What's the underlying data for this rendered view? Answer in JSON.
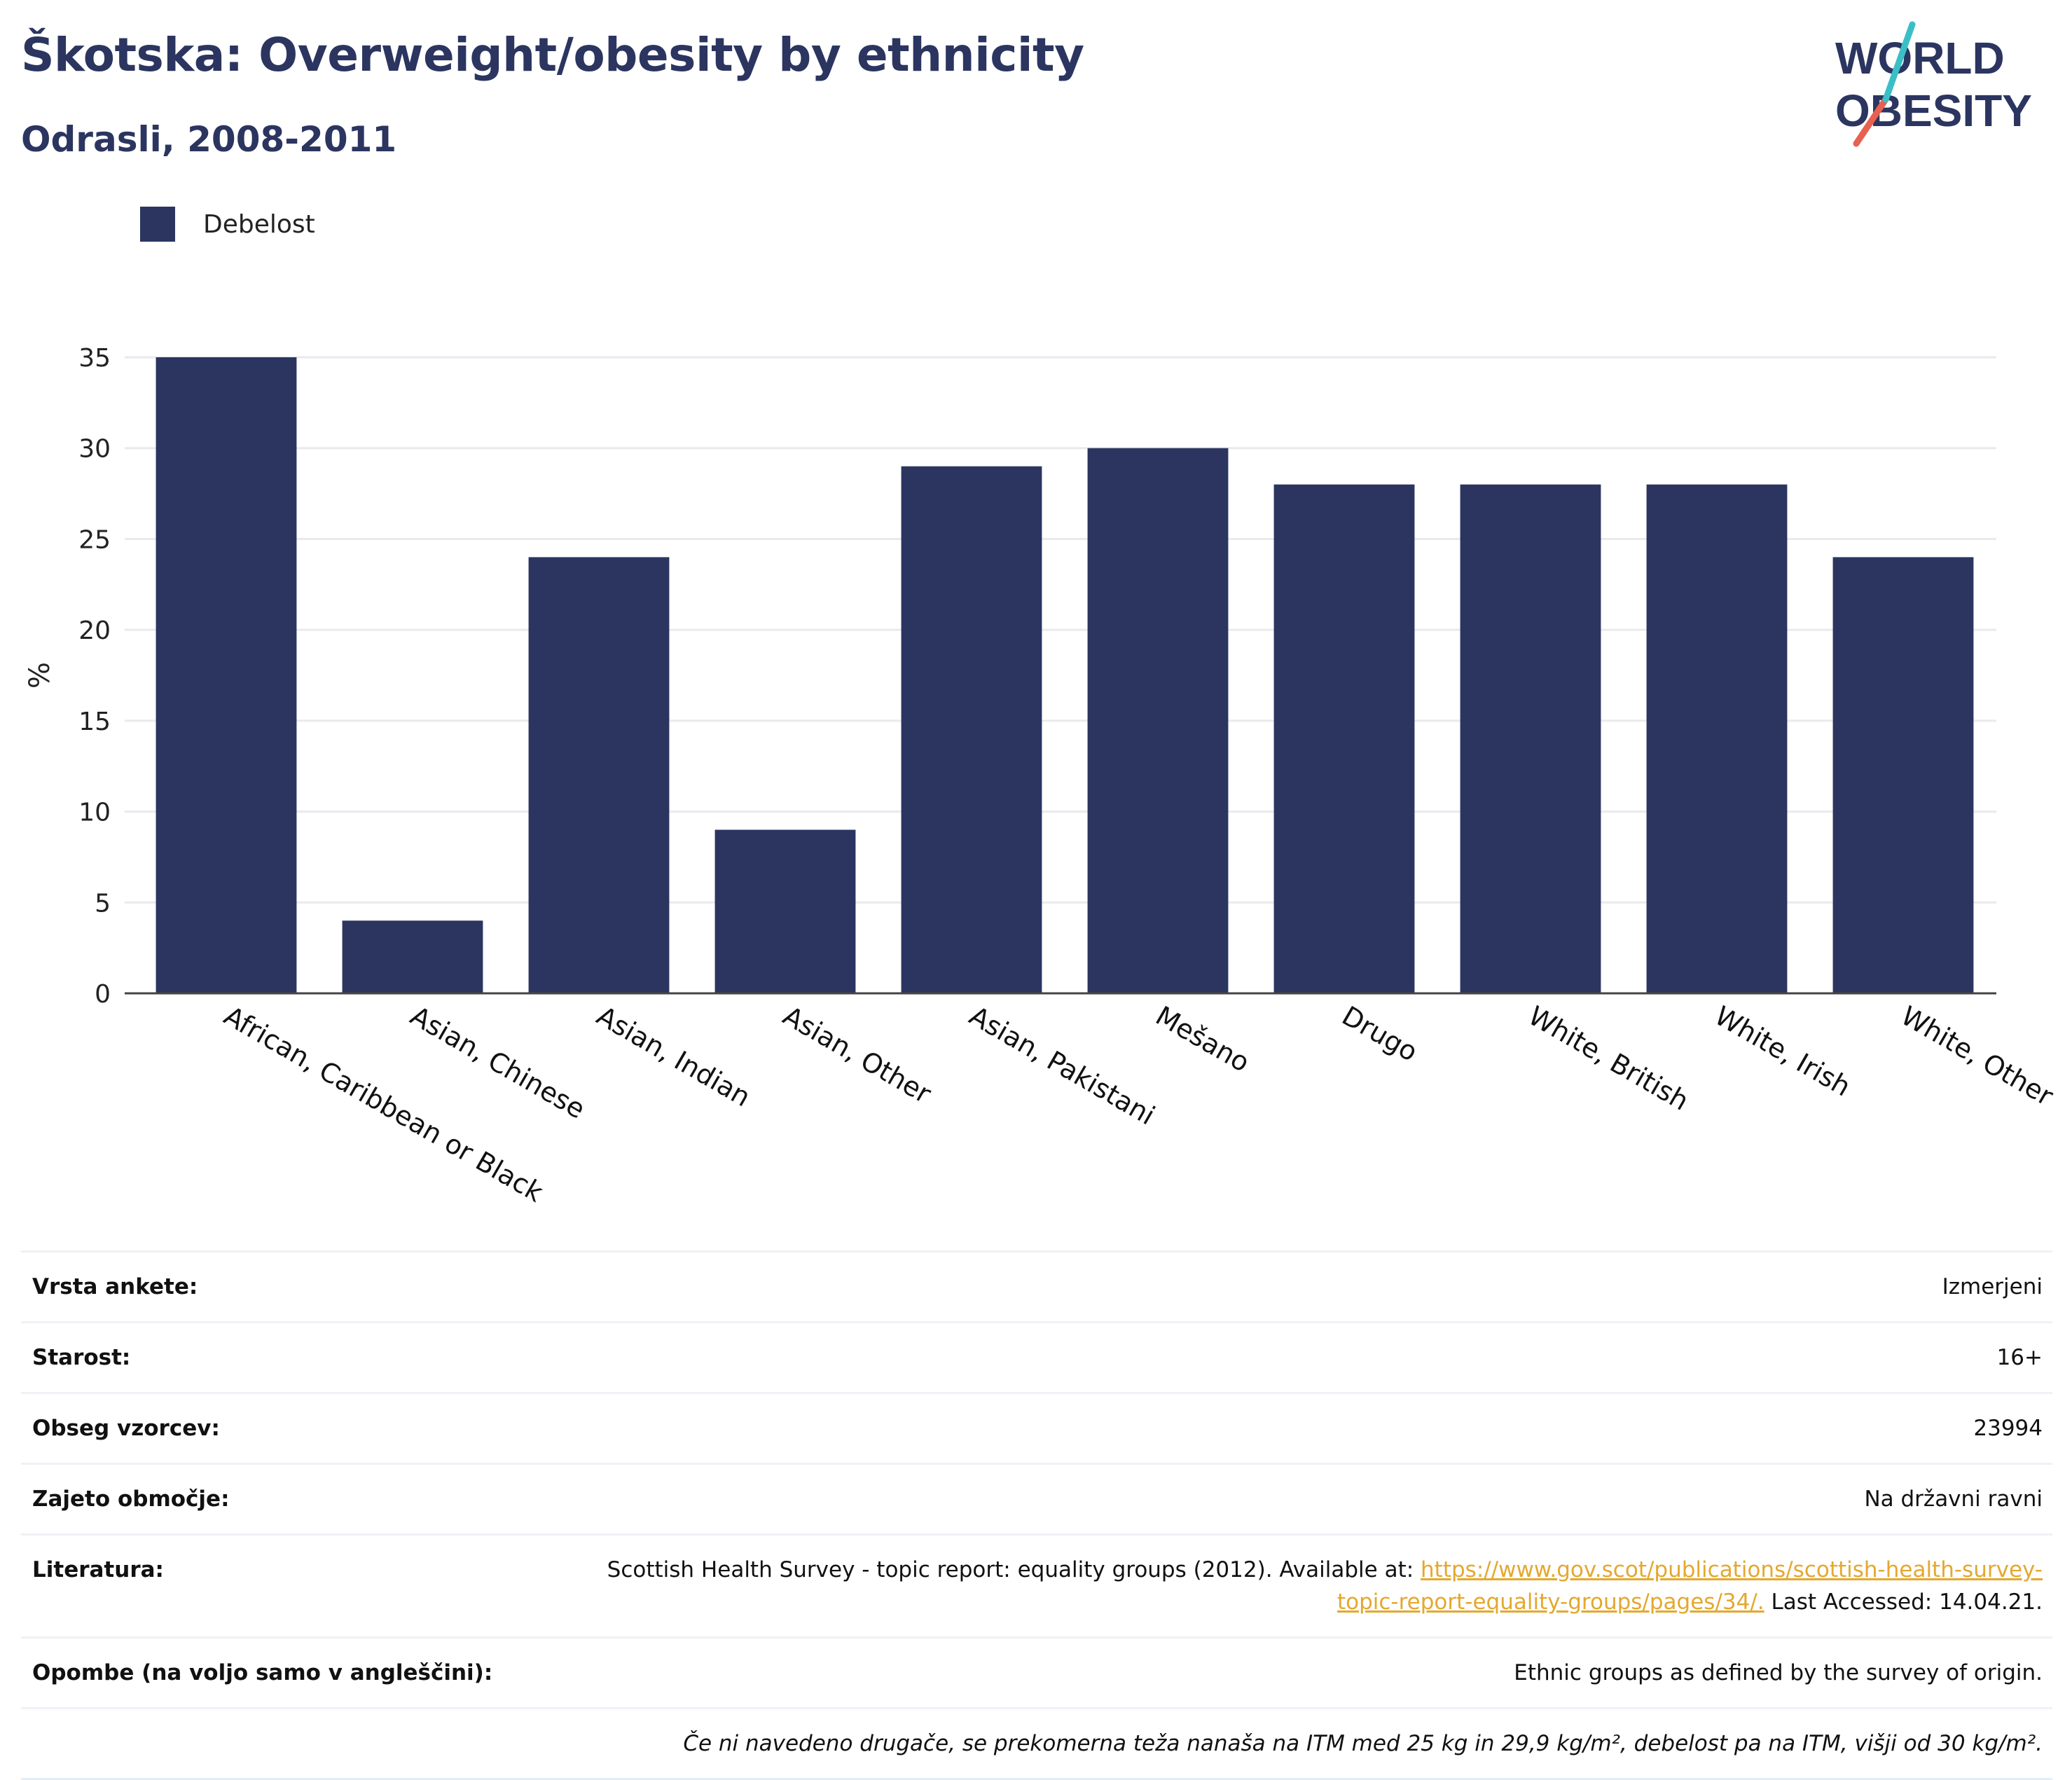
{
  "header": {
    "title": "Škotska: Overweight/obesity by ethnicity",
    "subtitle": "Odrasli, 2008-2011"
  },
  "logo": {
    "line1": "WORLD",
    "line2": "OBESITY"
  },
  "colors": {
    "bar": "#2b3560",
    "title": "#2b3560",
    "grid": "#e8eaee",
    "link": "#e4a82f",
    "logo_teal": "#3bbfc7",
    "logo_red": "#e8604f"
  },
  "chart_data": {
    "type": "bar",
    "ylabel": "%",
    "ylim": [
      0,
      35
    ],
    "yticks": [
      0,
      5,
      10,
      15,
      20,
      25,
      30,
      35
    ],
    "grid": true,
    "legend_position": "top-left",
    "categories": [
      "African, Caribbean or Black",
      "Asian, Chinese",
      "Asian, Indian",
      "Asian, Other",
      "Asian, Pakistani",
      "Mešano",
      "Drugo",
      "White, British",
      "White, Irish",
      "White, Other"
    ],
    "series": [
      {
        "name": "Debelost",
        "values": [
          35,
          4,
          24,
          9,
          29,
          30,
          28,
          28,
          28,
          24
        ]
      }
    ]
  },
  "info": {
    "rows": [
      {
        "label": "Vrsta ankete:",
        "value": "Izmerjeni"
      },
      {
        "label": "Starost:",
        "value": "16+"
      },
      {
        "label": "Obseg vzorcev:",
        "value": "23994"
      },
      {
        "label": "Zajeto območje:",
        "value": "Na državni ravni"
      }
    ],
    "literature": {
      "label": "Literatura:",
      "text_before": "Scottish Health Survey - topic report: equality groups (2012). Available at: ",
      "link": "https://www.gov.scot/publications/scottish-health-survey-topic-report-equality-groups/pages/34/.",
      "text_after": " Last Accessed: 14.04.21."
    },
    "notes": {
      "label": "Opombe (na voljo samo v angleščini):",
      "value": "Ethnic groups as defined by the survey of origin."
    },
    "footnote": "Če ni navedeno drugače, se prekomerna teža nanaša na ITM med 25 kg in 29,9 kg/m², debelost pa na ITM, višji od 30 kg/m²."
  }
}
